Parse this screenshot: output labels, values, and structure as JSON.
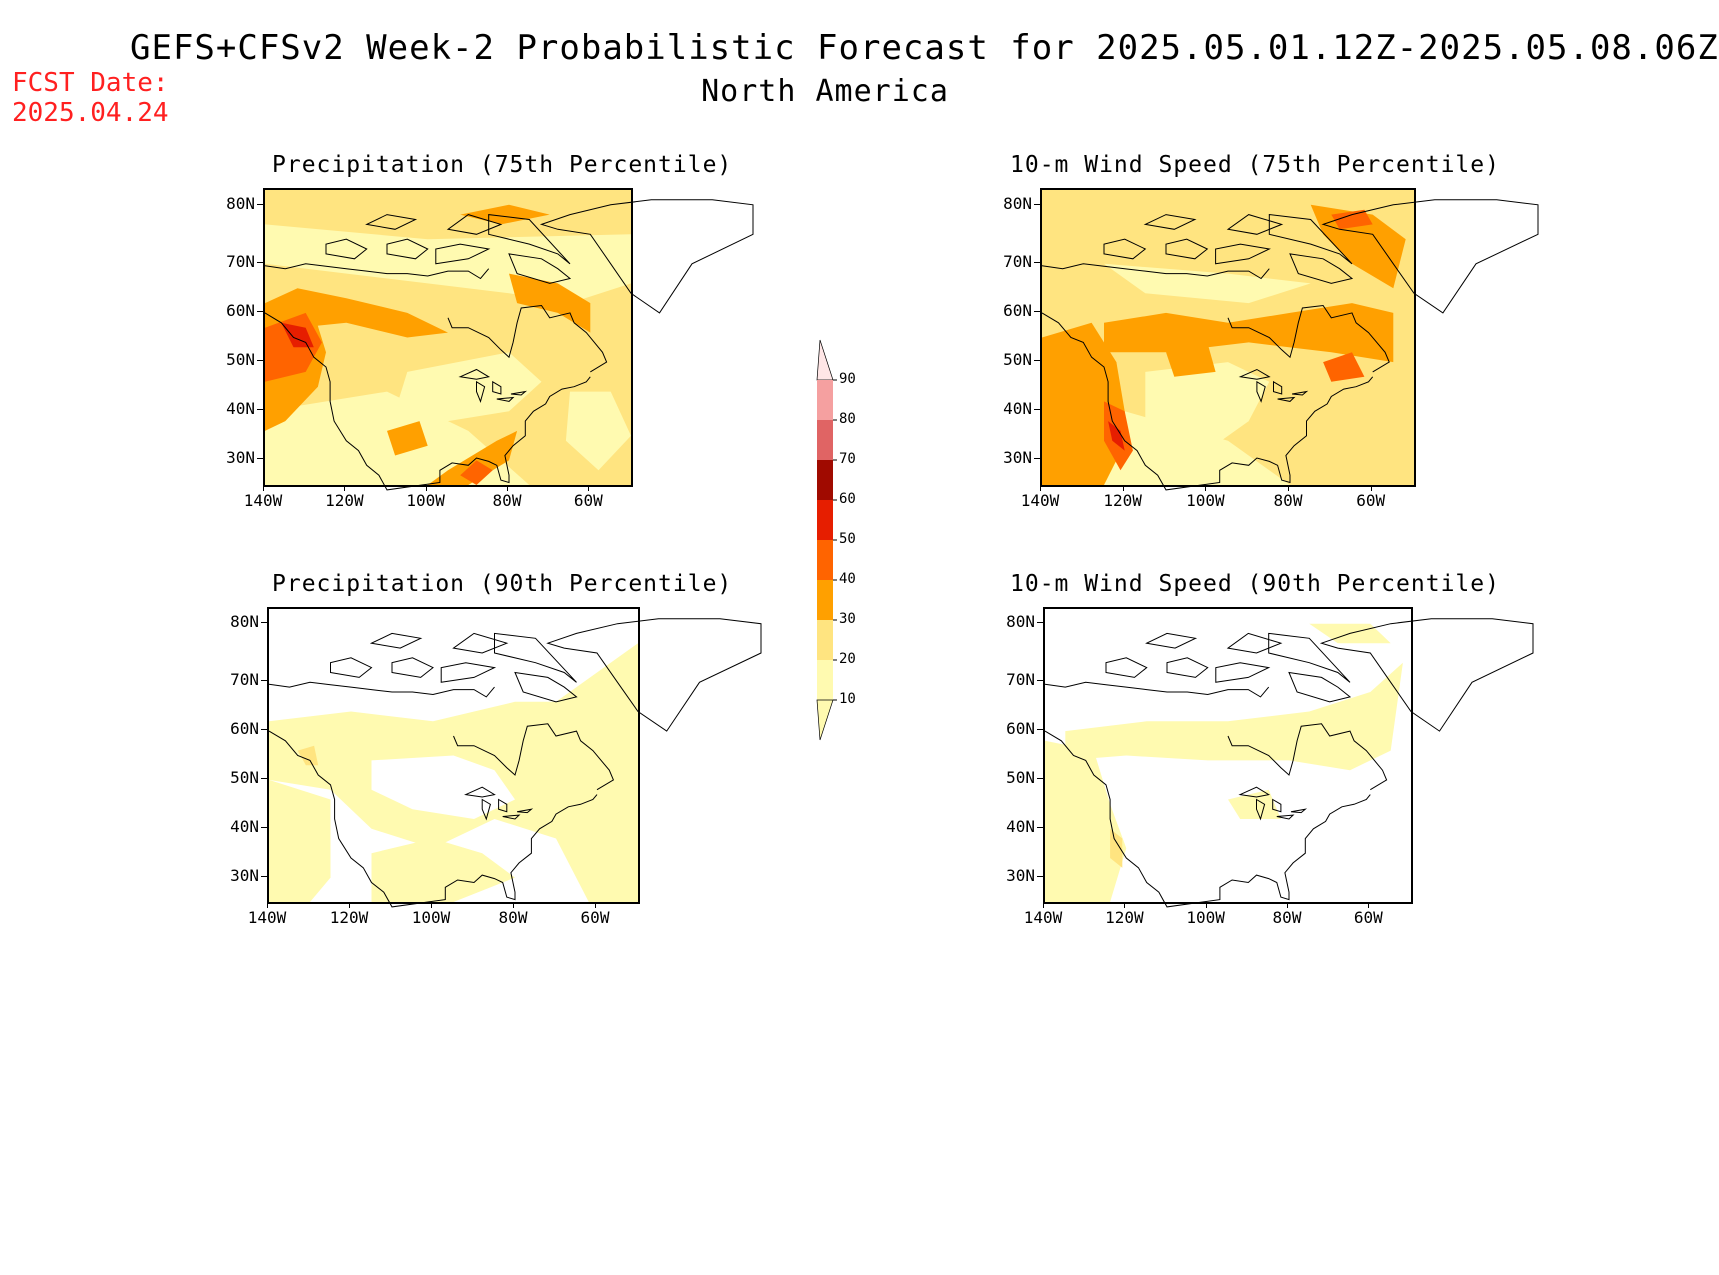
{
  "header": {
    "title": "GEFS+CFSv2 Week-2 Probabilistic Forecast for 2025.05.01.12Z-2025.05.08.06Z",
    "subtitle": "North America",
    "fcst_line1": "FCST Date:",
    "fcst_line2": "2025.04.24"
  },
  "panels": [
    {
      "title": "Precipitation (75th Percentile)"
    },
    {
      "title": "10-m Wind Speed (75th Percentile)"
    },
    {
      "title": "Precipitation (90th Percentile)"
    },
    {
      "title": "10-m Wind Speed (90th Percentile)"
    }
  ],
  "axes": {
    "lat_labels": [
      "80N",
      "70N",
      "60N",
      "50N",
      "40N",
      "30N"
    ],
    "lon_labels": [
      "140W",
      "120W",
      "100W",
      "80W",
      "60W"
    ]
  },
  "colorbar": {
    "levels": [
      "10",
      "20",
      "30",
      "40",
      "50",
      "60",
      "70",
      "80",
      "90"
    ],
    "colors": [
      "#fffab0",
      "#ffe480",
      "#ffa000",
      "#ff6400",
      "#e61e00",
      "#a00a00",
      "#e06464",
      "#f5a0a0",
      "#ffe6e6"
    ]
  }
}
